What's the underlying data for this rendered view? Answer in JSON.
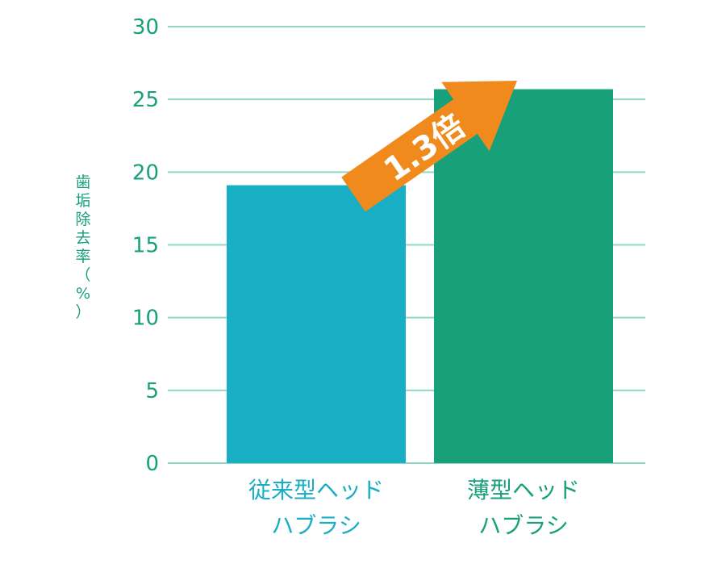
{
  "chart_data": {
    "type": "bar",
    "categories": [
      [
        "従来型ヘッド",
        "ハブラシ"
      ],
      [
        "薄型ヘッド",
        "ハブラシ"
      ]
    ],
    "values": [
      19.1,
      25.7
    ],
    "ylabel": [
      "歯",
      "垢",
      "除",
      "去",
      "率",
      "（",
      "%",
      "）"
    ],
    "ylim": [
      0,
      30
    ],
    "yticks": [
      0,
      5,
      10,
      15,
      20,
      25,
      30
    ],
    "grid": true,
    "annotation": "1.3倍",
    "colors": {
      "bars": [
        "#18aec4",
        "#17a07a"
      ],
      "axis_text": "#17a07a",
      "grid": "#8fd9c2",
      "arrow": "#f08a1d"
    }
  }
}
